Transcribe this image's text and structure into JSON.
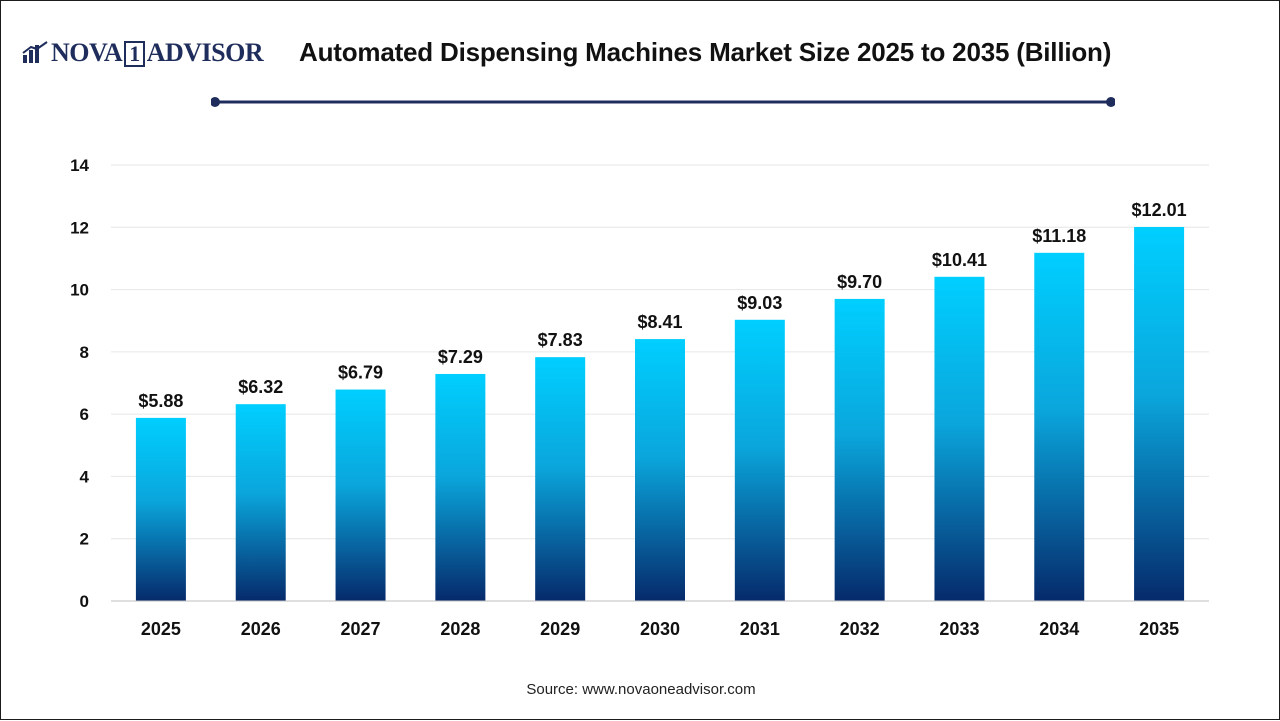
{
  "header": {
    "logo_text_left": "NOVA",
    "logo_text_one": "1",
    "logo_text_right": "ADVISOR",
    "title": "Automated Dispensing Machines Market Size 2025 to 2035 (Billion)"
  },
  "footer": {
    "source": "Source: www.novaoneadvisor.com"
  },
  "colors": {
    "brand": "#1f2d5c",
    "bar_top": "#00cfff",
    "bar_bottom": "#062a6b",
    "grid": "#e6e6e6"
  },
  "chart_data": {
    "type": "bar",
    "title": "Automated Dispensing Machines Market Size 2025 to 2035 (Billion)",
    "categories": [
      "2025",
      "2026",
      "2027",
      "2028",
      "2029",
      "2030",
      "2031",
      "2032",
      "2033",
      "2034",
      "2035"
    ],
    "values": [
      5.88,
      6.32,
      6.79,
      7.29,
      7.83,
      8.41,
      9.03,
      9.7,
      10.41,
      11.18,
      12.01
    ],
    "data_labels": [
      "$5.88",
      "$6.32",
      "$6.79",
      "$7.29",
      "$7.83",
      "$8.41",
      "$9.03",
      "$9.70",
      "$10.41",
      "$11.18",
      "$12.01"
    ],
    "yticks": [
      "0",
      "2",
      "4",
      "6",
      "8",
      "10",
      "12",
      "14"
    ],
    "ylim": [
      0,
      14
    ],
    "xlabel": "",
    "ylabel": "",
    "grid": true,
    "legend": "none"
  }
}
